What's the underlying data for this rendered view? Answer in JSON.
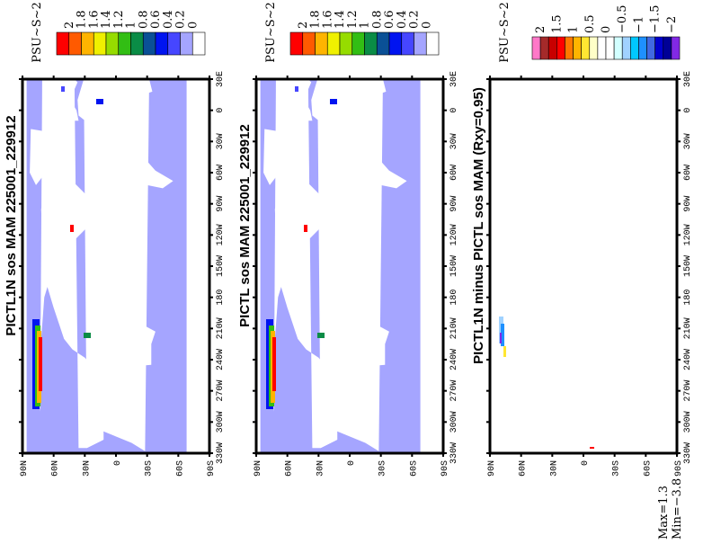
{
  "colors": {
    "ocean": "#a5a5ff",
    "land": "#ffffff",
    "frame": "#000000"
  },
  "chart_data": [
    {
      "type": "heatmap",
      "title": "PICTL1N sos MAM 225001_229912",
      "units": "PSU~S~2",
      "colorbar": {
        "labels": [
          "2",
          "1.8",
          "1.6",
          "1.4",
          "1.2",
          "1",
          "0.8",
          "0.6",
          "0.4",
          "0.2",
          "0"
        ],
        "colors": [
          "#ff0000",
          "#ff5a00",
          "#ffb400",
          "#f0f000",
          "#96dc00",
          "#32be14",
          "#0a8c46",
          "#0a5096",
          "#0014f0",
          "#4646ff",
          "#a5a5ff",
          "#ffffff"
        ]
      }
    },
    {
      "type": "heatmap",
      "title": "PICTL sos MAM 225001_229912",
      "units": "PSU~S~2",
      "colorbar": {
        "labels": [
          "2",
          "1.8",
          "1.6",
          "1.4",
          "1.2",
          "1",
          "0.8",
          "0.6",
          "0.4",
          "0.2",
          "0"
        ],
        "colors": [
          "#ff0000",
          "#ff5a00",
          "#ffb400",
          "#f0f000",
          "#96dc00",
          "#32be14",
          "#0a8c46",
          "#0a5096",
          "#0014f0",
          "#4646ff",
          "#a5a5ff",
          "#ffffff"
        ]
      }
    },
    {
      "type": "heatmap",
      "title": "PICTL1N minus PICTL sos MAM (Rxy=0.95)",
      "units": "PSU~S~2",
      "colorbar": {
        "labels": [
          "2",
          "1.5",
          "1",
          "0.5",
          "0",
          "−0.5",
          "−1",
          "−1.5",
          "−2"
        ],
        "colors": [
          "#ff78c8",
          "#a52a2a",
          "#c80000",
          "#ff0000",
          "#ff7800",
          "#ffb400",
          "#ffe632",
          "#ffffc8",
          "#ffffff",
          "#ffffff",
          "#d2ffff",
          "#a0d2ff",
          "#00c8ff",
          "#1e90ff",
          "#4169e1",
          "#0000cd",
          "#000096",
          "#8228e6"
        ]
      },
      "max_label": "Max=1.3",
      "min_label": "Min=−3.8"
    }
  ],
  "axes": {
    "lon_ticks": [
      30,
      0,
      -30,
      -60,
      -90,
      -120,
      -150,
      -180,
      -210,
      -240,
      -270,
      -300,
      -330
    ],
    "lon_labels": [
      "30E",
      "0",
      "30W",
      "60W",
      "90W",
      "120W",
      "150W",
      "180",
      "210W",
      "240W",
      "270W",
      "300W",
      "330W"
    ],
    "lat_ticks": [
      90,
      60,
      30,
      0,
      -30,
      -60,
      -90
    ],
    "lat_labels": [
      "90N",
      "60N",
      "30N",
      "0",
      "30S",
      "60S",
      "90S"
    ]
  }
}
